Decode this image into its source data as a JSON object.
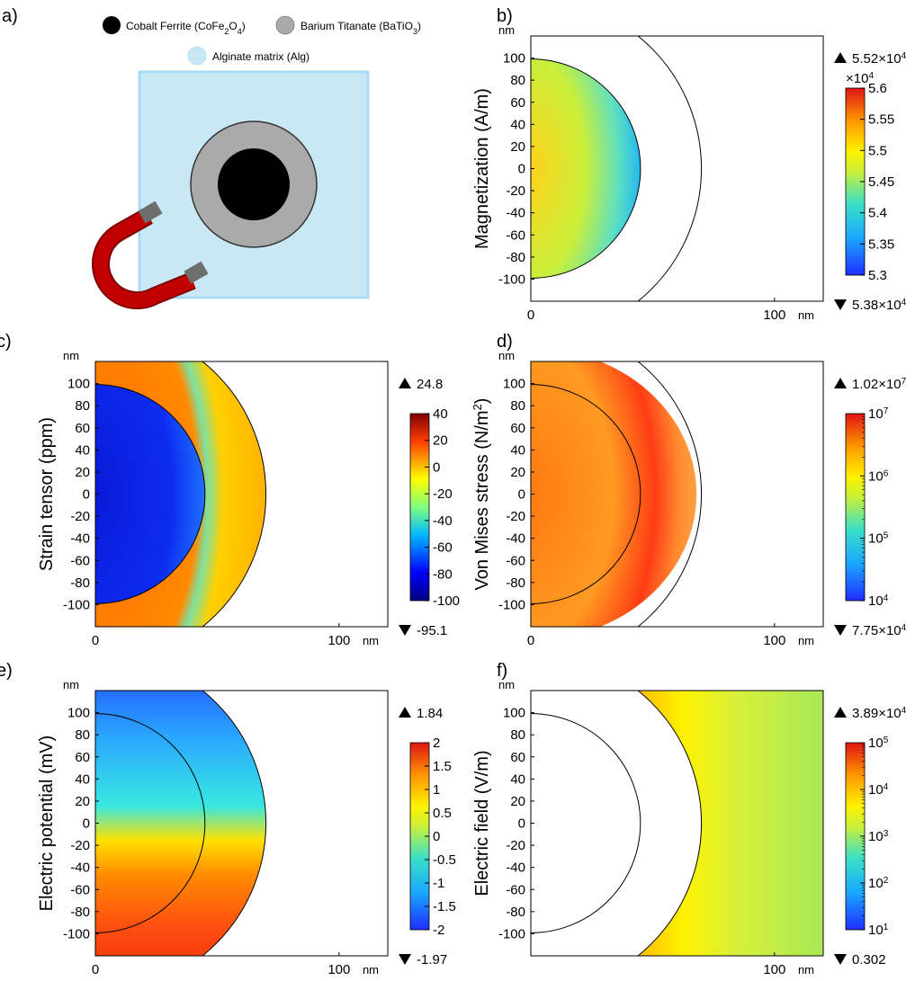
{
  "panel_a": {
    "letter": "a)",
    "legend": [
      {
        "label": "Cobalt Ferrite (CoFe",
        "sub": "2",
        "mid": "O",
        "sub2": "4",
        "end": ")",
        "color": "#000000"
      },
      {
        "label": "Barium Titanate (BaTiO",
        "sub": "3",
        "mid": ")",
        "sub2": "",
        "end": "",
        "color": "#aaaaaa"
      },
      {
        "label": "Alginate matrix (Alg)",
        "sub": "",
        "mid": "",
        "sub2": "",
        "end": "",
        "color": "#c9e8f6"
      }
    ],
    "colors": {
      "matrix": "#c9e8f6",
      "matrix_border": "#a8dcf2",
      "shell": "#aaaaaa",
      "core": "#000000",
      "magnet": "#c00000",
      "pole": "#6e6e6e"
    }
  },
  "chart_data": [
    {
      "id": "b",
      "letter": "b)",
      "type": "heatmap",
      "ylabel": "Magnetization (A/m)",
      "unit_top": "nm",
      "unit_right": "nm",
      "yticks": [
        "100",
        "80",
        "60",
        "40",
        "20",
        "0",
        "-20",
        "-40",
        "-60",
        "-80",
        "-100"
      ],
      "xticks": [
        "0",
        "100"
      ],
      "max_label": {
        "base": "5.52×10",
        "exp": "4"
      },
      "min_label": {
        "base": "5.38×10",
        "exp": "4"
      },
      "multiplier": {
        "base": "×10",
        "exp": "4"
      },
      "colorbar": {
        "scale": "linear",
        "ticks": [
          {
            "t": "5.6",
            "e": ""
          },
          {
            "t": "5.55",
            "e": ""
          },
          {
            "t": "5.5",
            "e": ""
          },
          {
            "t": "5.45",
            "e": ""
          },
          {
            "t": "5.4",
            "e": ""
          },
          {
            "t": "5.35",
            "e": ""
          },
          {
            "t": "5.3",
            "e": ""
          }
        ],
        "colormap": "rainbow"
      },
      "xlim": [
        0,
        120
      ],
      "ylim": [
        -120,
        120
      ],
      "regions": {
        "core_radius": 45,
        "shell_radius": 70
      }
    },
    {
      "id": "c",
      "letter": "c)",
      "type": "heatmap",
      "ylabel": "Strain tensor (ppm)",
      "unit_top": "nm",
      "unit_right": "nm",
      "yticks": [
        "100",
        "80",
        "60",
        "40",
        "20",
        "0",
        "-20",
        "-40",
        "-60",
        "-80",
        "-100"
      ],
      "xticks": [
        "0",
        "100"
      ],
      "max_label": {
        "base": "24.8",
        "exp": ""
      },
      "min_label": {
        "base": "-95.1",
        "exp": ""
      },
      "colorbar": {
        "scale": "linear",
        "ticks": [
          {
            "t": "40",
            "e": ""
          },
          {
            "t": "20",
            "e": ""
          },
          {
            "t": "0",
            "e": ""
          },
          {
            "t": "-20",
            "e": ""
          },
          {
            "t": "-40",
            "e": ""
          },
          {
            "t": "-60",
            "e": ""
          },
          {
            "t": "-80",
            "e": ""
          },
          {
            "t": "-100",
            "e": ""
          }
        ],
        "colormap": "jet"
      },
      "xlim": [
        0,
        120
      ],
      "ylim": [
        -120,
        120
      ],
      "regions": {
        "core_radius": 45,
        "shell_radius": 70
      }
    },
    {
      "id": "d",
      "letter": "d)",
      "type": "heatmap",
      "ylabel": "Von Mises stress (N/m",
      "ylabel_sup": "2",
      "ylabel_end": ")",
      "unit_top": "nm",
      "unit_right": "nm",
      "yticks": [
        "100",
        "80",
        "60",
        "40",
        "20",
        "0",
        "-20",
        "-40",
        "-60",
        "-80",
        "-100"
      ],
      "xticks": [
        "0",
        "100"
      ],
      "max_label": {
        "base": "1.02×10",
        "exp": "7"
      },
      "min_label": {
        "base": "7.75×10",
        "exp": "4"
      },
      "colorbar": {
        "scale": "log",
        "ticks": [
          {
            "t": "10",
            "e": "7"
          },
          {
            "t": "10",
            "e": "6"
          },
          {
            "t": "10",
            "e": "5"
          },
          {
            "t": "10",
            "e": "4"
          }
        ],
        "colormap": "rainbow"
      },
      "xlim": [
        0,
        120
      ],
      "ylim": [
        -120,
        120
      ],
      "regions": {
        "core_radius": 45,
        "shell_radius": 70
      }
    },
    {
      "id": "e",
      "letter": "e)",
      "type": "heatmap",
      "ylabel": "Electric potential (mV)",
      "unit_top": "nm",
      "unit_right": "nm",
      "yticks": [
        "100",
        "80",
        "60",
        "40",
        "20",
        "0",
        "-20",
        "-40",
        "-60",
        "-80",
        "-100"
      ],
      "xticks": [
        "0",
        "100"
      ],
      "max_label": {
        "base": "1.84",
        "exp": ""
      },
      "min_label": {
        "base": "-1.97",
        "exp": ""
      },
      "colorbar": {
        "scale": "linear",
        "ticks": [
          {
            "t": "2",
            "e": ""
          },
          {
            "t": "1.5",
            "e": ""
          },
          {
            "t": "1",
            "e": ""
          },
          {
            "t": "0.5",
            "e": ""
          },
          {
            "t": "0",
            "e": ""
          },
          {
            "t": "-0.5",
            "e": ""
          },
          {
            "t": "-1",
            "e": ""
          },
          {
            "t": "-1.5",
            "e": ""
          },
          {
            "t": "-2",
            "e": ""
          }
        ],
        "colormap": "rainbow"
      },
      "xlim": [
        0,
        120
      ],
      "ylim": [
        -120,
        120
      ],
      "regions": {
        "core_radius": 45,
        "shell_radius": 70
      }
    },
    {
      "id": "f",
      "letter": "f)",
      "type": "heatmap",
      "ylabel": "Electric field (V/m)",
      "unit_top": "nm",
      "unit_right": "nm",
      "yticks": [
        "100",
        "80",
        "60",
        "40",
        "20",
        "0",
        "-20",
        "-40",
        "-60",
        "-80",
        "-100"
      ],
      "xticks": [
        "100"
      ],
      "max_label": {
        "base": "3.89×10",
        "exp": "4"
      },
      "min_label": {
        "base": "0.302",
        "exp": ""
      },
      "colorbar": {
        "scale": "log",
        "ticks": [
          {
            "t": "10",
            "e": "5"
          },
          {
            "t": "10",
            "e": "4"
          },
          {
            "t": "10",
            "e": "3"
          },
          {
            "t": "10",
            "e": "2"
          },
          {
            "t": "10",
            "e": "1"
          }
        ],
        "colormap": "rainbow"
      },
      "xlim": [
        0,
        120
      ],
      "ylim": [
        -120,
        120
      ],
      "regions": {
        "core_radius": 45,
        "shell_radius": 70
      }
    }
  ]
}
